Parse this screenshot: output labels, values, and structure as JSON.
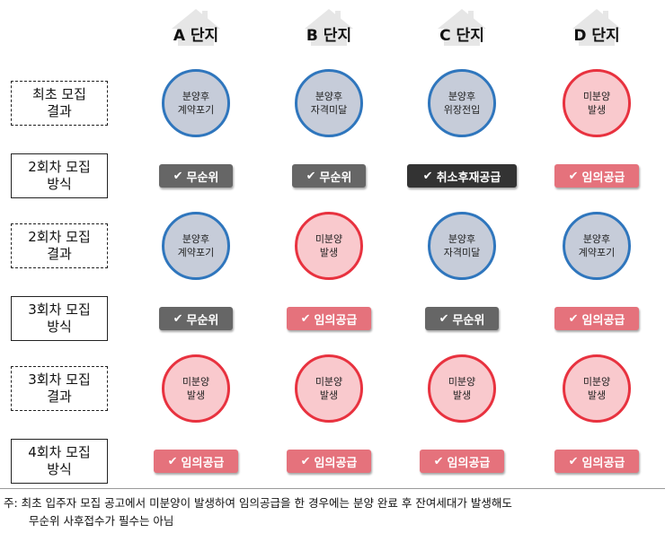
{
  "columns": [
    "A 단지",
    "B 단지",
    "C 단지",
    "D 단지"
  ],
  "rows": [
    {
      "label": [
        "최초 모집",
        "결과"
      ],
      "kind": "result",
      "cells": [
        {
          "lines": [
            "분양후",
            "계약포기"
          ],
          "color": "blue"
        },
        {
          "lines": [
            "분양후",
            "자격미달"
          ],
          "color": "blue"
        },
        {
          "lines": [
            "분양후",
            "위장전입"
          ],
          "color": "blue"
        },
        {
          "lines": [
            "미분양",
            "발생"
          ],
          "color": "red"
        }
      ]
    },
    {
      "label": [
        "2회차 모집",
        "방식"
      ],
      "kind": "method",
      "cells": [
        {
          "text": "무순위",
          "style": "gray"
        },
        {
          "text": "무순위",
          "style": "gray"
        },
        {
          "text": "취소후재공급",
          "style": "dark"
        },
        {
          "text": "임의공급",
          "style": "pink"
        }
      ]
    },
    {
      "label": [
        "2회차 모집",
        "결과"
      ],
      "kind": "result",
      "cells": [
        {
          "lines": [
            "분양후",
            "계약포기"
          ],
          "color": "blue"
        },
        {
          "lines": [
            "미분양",
            "발생"
          ],
          "color": "red"
        },
        {
          "lines": [
            "분양후",
            "자격미달"
          ],
          "color": "blue"
        },
        {
          "lines": [
            "분양후",
            "계약포기"
          ],
          "color": "blue"
        }
      ]
    },
    {
      "label": [
        "3회차 모집",
        "방식"
      ],
      "kind": "method",
      "cells": [
        {
          "text": "무순위",
          "style": "gray"
        },
        {
          "text": "임의공급",
          "style": "pink"
        },
        {
          "text": "무순위",
          "style": "gray"
        },
        {
          "text": "임의공급",
          "style": "pink"
        }
      ]
    },
    {
      "label": [
        "3회차 모집",
        "결과"
      ],
      "kind": "result",
      "cells": [
        {
          "lines": [
            "미분양",
            "발생"
          ],
          "color": "red"
        },
        {
          "lines": [
            "미분양",
            "발생"
          ],
          "color": "red"
        },
        {
          "lines": [
            "미분양",
            "발생"
          ],
          "color": "red"
        },
        {
          "lines": [
            "미분양",
            "발생"
          ],
          "color": "red"
        }
      ]
    },
    {
      "label": [
        "4회차 모집",
        "방식"
      ],
      "kind": "method",
      "cells": [
        {
          "text": "임의공급",
          "style": "pink"
        },
        {
          "text": "임의공급",
          "style": "pink"
        },
        {
          "text": "임의공급",
          "style": "pink"
        },
        {
          "text": "임의공급",
          "style": "pink"
        }
      ]
    }
  ],
  "note": {
    "line1": "주: 최초 입주자 모집 공고에서 미분양이 발생하여 임의공급을 한 경우에는 분양 완료 후 잔여세대가 발생해도",
    "line2": "무순위 사후접수가 필수는 아님"
  },
  "colors": {
    "circle_blue_border": "#2f76bd",
    "circle_blue_fill": "#c6ccd9",
    "circle_red_border": "#e8323f",
    "circle_red_fill": "#f9c9cd",
    "badge_gray": "#666666",
    "badge_dark": "#333333",
    "badge_pink": "#e5727c"
  }
}
